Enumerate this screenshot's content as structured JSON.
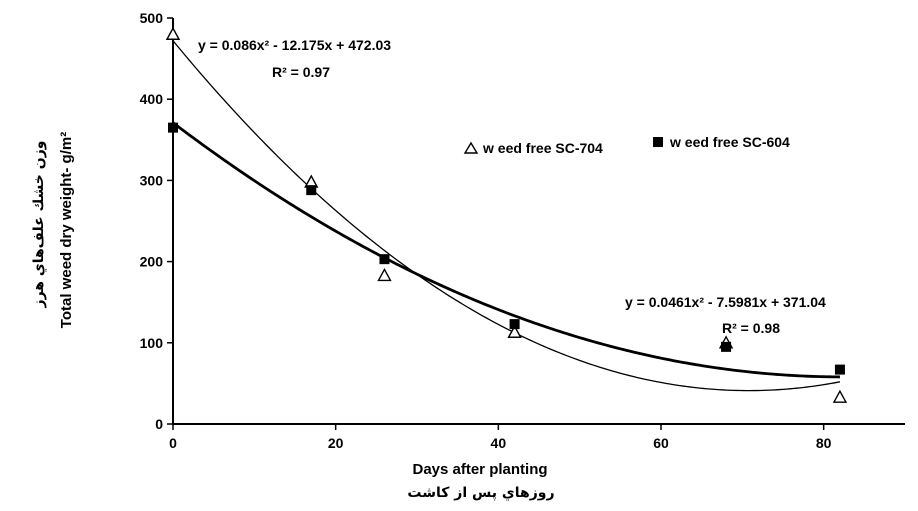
{
  "chart_data": {
    "type": "scatter",
    "xlabel": "Days after planting",
    "xlabel_fa": "روزهاي پس از كاشت",
    "ylabel": "Total weed dry weight- g/m²",
    "ylabel_fa": "وزن خشك علف‌هاي هرز",
    "xlim": [
      0,
      90
    ],
    "ylim": [
      0,
      500
    ],
    "x_ticks": [
      "0",
      "20",
      "40",
      "60",
      "80"
    ],
    "y_ticks": [
      "0",
      "100",
      "200",
      "300",
      "400",
      "500"
    ],
    "grid": false,
    "legend_position": "right",
    "series": [
      {
        "name": "w eed free SC-704",
        "marker": "triangle-open",
        "x": [
          0,
          17,
          26,
          42,
          68,
          82
        ],
        "y": [
          480,
          298,
          183,
          113,
          100,
          33
        ],
        "fit": {
          "a": 0.086,
          "b": -12.175,
          "c": 472.03,
          "x_range": [
            0,
            82
          ]
        },
        "equation": "y = 0.086x² - 12.175x + 472.03",
        "r2": "R² = 0.97"
      },
      {
        "name": "w eed free SC-604",
        "marker": "square-filled",
        "x": [
          0,
          17,
          26,
          42,
          68,
          82
        ],
        "y": [
          365,
          288,
          203,
          123,
          95,
          67
        ],
        "fit": {
          "a": 0.0461,
          "b": -7.5981,
          "c": 371.04,
          "x_range": [
            0,
            82
          ]
        },
        "equation": "y = 0.0461x² - 7.5981x + 371.04",
        "r2": "R² = 0.98"
      }
    ]
  }
}
